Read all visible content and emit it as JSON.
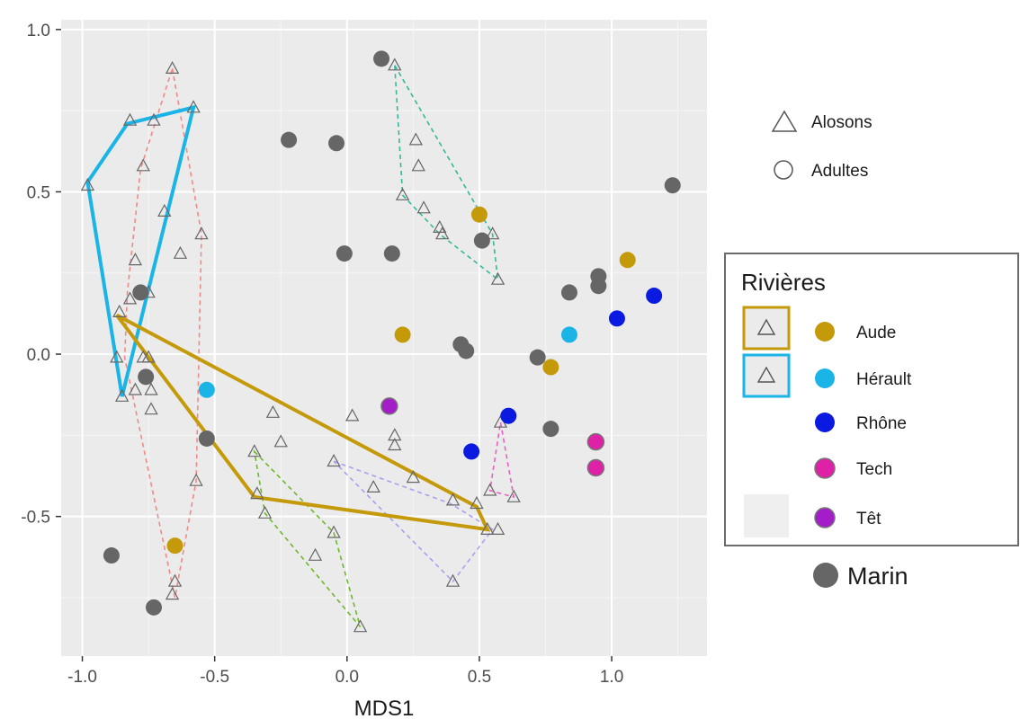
{
  "chart_data": {
    "type": "scatter",
    "title": "",
    "xlabel": "MDS1",
    "ylabel": "",
    "xlim": [
      -1.08,
      1.36
    ],
    "ylim": [
      -0.93,
      1.03
    ],
    "grid": true,
    "x_ticks": [
      -1.0,
      -0.5,
      0.0,
      0.5,
      1.0
    ],
    "x_tick_labels": [
      "-1.0",
      "-0.5",
      "0.0",
      "0.5",
      "1.0"
    ],
    "y_ticks": [
      -0.5,
      0.0,
      0.5,
      1.0
    ],
    "y_tick_labels": [
      "-0.5",
      "0.0",
      "0.5",
      "1.0"
    ],
    "legend_placement": "right",
    "shape_legend": [
      {
        "label": "Alosons",
        "shape": "triangle"
      },
      {
        "label": "Adultes",
        "shape": "circle"
      }
    ],
    "legend_title": "Rivières",
    "groups": [
      {
        "name": "Aude",
        "color": "#C49A0A",
        "hull_style": "solid"
      },
      {
        "name": "Hérault",
        "color": "#1AB4E6",
        "hull_style": "solid"
      },
      {
        "name": "Rhône",
        "color": "#0A1AE0",
        "hull_style": "none"
      },
      {
        "name": "Tech",
        "color": "#DF21A8",
        "hull_style": "none"
      },
      {
        "name": "Têt",
        "color": "#A31DC9",
        "hull_style": "none"
      },
      {
        "name": "Marin",
        "color": "#666666",
        "hull_style": "none"
      }
    ],
    "juvenile_hulls": [
      {
        "color": "#F08A86",
        "style": "dashed",
        "points": [
          [
            -0.66,
            0.88
          ],
          [
            -0.55,
            0.37
          ],
          [
            -0.57,
            -0.39
          ],
          [
            -0.65,
            -0.75
          ],
          [
            -0.84,
            -0.01
          ],
          [
            -0.83,
            0.19
          ],
          [
            -0.78,
            0.57
          ]
        ]
      },
      {
        "color": "#35B89A",
        "style": "dashed",
        "points": [
          [
            0.18,
            0.89
          ],
          [
            0.55,
            0.37
          ],
          [
            0.57,
            0.23
          ],
          [
            0.35,
            0.37
          ],
          [
            0.21,
            0.49
          ]
        ]
      },
      {
        "color": "#6DB82A",
        "style": "dashed",
        "points": [
          [
            -0.35,
            -0.3
          ],
          [
            -0.05,
            -0.55
          ],
          [
            0.05,
            -0.84
          ],
          [
            -0.31,
            -0.49
          ]
        ]
      },
      {
        "color": "#A8A0F0",
        "style": "dashed",
        "points": [
          [
            -0.05,
            -0.33
          ],
          [
            0.39,
            -0.46
          ],
          [
            0.55,
            -0.54
          ],
          [
            0.4,
            -0.7
          ]
        ]
      },
      {
        "color": "#E561C4",
        "style": "dashed",
        "points": [
          [
            0.58,
            -0.21
          ],
          [
            0.63,
            -0.44
          ],
          [
            0.54,
            -0.42
          ]
        ]
      }
    ],
    "adult_hulls": [
      {
        "group": "Hérault",
        "color": "#1AB4E6",
        "points": [
          [
            -0.98,
            0.53
          ],
          [
            -0.83,
            0.71
          ],
          [
            -0.58,
            0.76
          ],
          [
            -0.85,
            -0.13
          ]
        ]
      },
      {
        "group": "Aude",
        "color": "#C49A0A",
        "points": [
          [
            -0.87,
            0.12
          ],
          [
            0.49,
            -0.47
          ],
          [
            0.53,
            -0.54
          ],
          [
            -0.35,
            -0.44
          ]
        ]
      }
    ],
    "triangles": [
      [
        -0.66,
        0.88
      ],
      [
        -0.82,
        0.72
      ],
      [
        -0.73,
        0.72
      ],
      [
        -0.77,
        0.58
      ],
      [
        -0.69,
        0.44
      ],
      [
        -0.8,
        0.29
      ],
      [
        -0.63,
        0.31
      ],
      [
        -0.55,
        0.37
      ],
      [
        -0.75,
        0.19
      ],
      [
        -0.82,
        0.17
      ],
      [
        -0.86,
        0.13
      ],
      [
        -0.87,
        -0.01
      ],
      [
        -0.77,
        -0.01
      ],
      [
        -0.75,
        -0.01
      ],
      [
        -0.74,
        -0.11
      ],
      [
        -0.8,
        -0.11
      ],
      [
        -0.74,
        -0.17
      ],
      [
        -0.57,
        -0.39
      ],
      [
        -0.65,
        -0.7
      ],
      [
        -0.66,
        -0.74
      ],
      [
        -0.98,
        0.52
      ],
      [
        -0.58,
        0.76
      ],
      [
        -0.85,
        -0.13
      ],
      [
        0.18,
        0.89
      ],
      [
        0.26,
        0.66
      ],
      [
        0.27,
        0.58
      ],
      [
        0.21,
        0.49
      ],
      [
        0.29,
        0.45
      ],
      [
        0.35,
        0.39
      ],
      [
        0.36,
        0.37
      ],
      [
        0.55,
        0.37
      ],
      [
        0.57,
        0.23
      ],
      [
        -0.28,
        -0.18
      ],
      [
        -0.25,
        -0.27
      ],
      [
        -0.35,
        -0.3
      ],
      [
        -0.34,
        -0.43
      ],
      [
        -0.31,
        -0.49
      ],
      [
        -0.12,
        -0.62
      ],
      [
        -0.05,
        -0.55
      ],
      [
        0.02,
        -0.19
      ],
      [
        0.1,
        -0.41
      ],
      [
        0.18,
        -0.25
      ],
      [
        0.18,
        -0.28
      ],
      [
        0.25,
        -0.38
      ],
      [
        0.4,
        -0.45
      ],
      [
        0.49,
        -0.46
      ],
      [
        0.53,
        -0.54
      ],
      [
        0.57,
        -0.54
      ],
      [
        0.54,
        -0.42
      ],
      [
        0.58,
        -0.21
      ],
      [
        0.63,
        -0.44
      ],
      [
        0.4,
        -0.7
      ],
      [
        -0.05,
        -0.33
      ],
      [
        0.05,
        -0.84
      ]
    ],
    "circles": [
      {
        "group": "Marin",
        "points": [
          [
            0.13,
            0.91
          ],
          [
            -0.22,
            0.66
          ],
          [
            -0.04,
            0.65
          ],
          [
            -0.01,
            0.31
          ],
          [
            0.17,
            0.31
          ],
          [
            0.51,
            0.35
          ],
          [
            1.23,
            0.52
          ],
          [
            0.95,
            0.24
          ],
          [
            0.95,
            0.21
          ],
          [
            0.84,
            0.19
          ],
          [
            0.43,
            0.03
          ],
          [
            0.45,
            0.01
          ],
          [
            0.72,
            -0.01
          ],
          [
            0.77,
            -0.23
          ],
          [
            -0.78,
            0.19
          ],
          [
            -0.76,
            -0.07
          ],
          [
            -0.53,
            -0.26
          ],
          [
            -0.89,
            -0.62
          ],
          [
            -0.73,
            -0.78
          ]
        ]
      },
      {
        "group": "Aude",
        "points": [
          [
            0.5,
            0.43
          ],
          [
            1.06,
            0.29
          ],
          [
            0.21,
            0.06
          ],
          [
            0.77,
            -0.04
          ],
          [
            -0.65,
            -0.59
          ]
        ]
      },
      {
        "group": "Hérault",
        "points": [
          [
            0.84,
            0.06
          ],
          [
            -0.53,
            -0.11
          ]
        ]
      },
      {
        "group": "Rhône",
        "points": [
          [
            1.16,
            0.18
          ],
          [
            1.02,
            0.11
          ],
          [
            0.61,
            -0.19
          ],
          [
            0.47,
            -0.3
          ]
        ]
      },
      {
        "group": "Tech",
        "points": [
          [
            0.94,
            -0.27
          ],
          [
            0.94,
            -0.35
          ]
        ]
      },
      {
        "group": "Têt",
        "points": [
          [
            0.16,
            -0.16
          ]
        ]
      }
    ]
  }
}
